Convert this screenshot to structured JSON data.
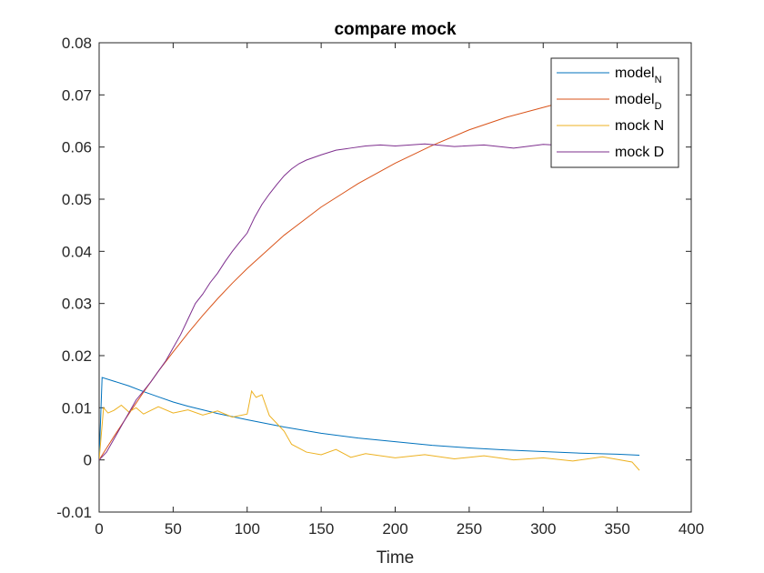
{
  "chart_data": {
    "type": "line",
    "title": "compare mock",
    "xlabel": "Time",
    "ylabel": "",
    "xlim": [
      0,
      400
    ],
    "ylim": [
      -0.01,
      0.08
    ],
    "xticks": [
      "0",
      "50",
      "100",
      "150",
      "200",
      "250",
      "300",
      "350",
      "400"
    ],
    "yticks": [
      "-0.01",
      "0",
      "0.01",
      "0.02",
      "0.03",
      "0.04",
      "0.05",
      "0.06",
      "0.07",
      "0.08"
    ],
    "grid": false,
    "legend_position": "top-right",
    "legend": [
      {
        "text": "model",
        "sub": "N"
      },
      {
        "text": "model",
        "sub": "D"
      },
      {
        "text": "mock N",
        "sub": ""
      },
      {
        "text": "mock D",
        "sub": ""
      }
    ],
    "series": [
      {
        "name": "modelN",
        "color": "#0072BD",
        "x": [
          0,
          2,
          10,
          20,
          30,
          40,
          50,
          60,
          80,
          100,
          125,
          150,
          175,
          200,
          225,
          250,
          275,
          300,
          325,
          350,
          365
        ],
        "y": [
          0,
          0.0158,
          0.0151,
          0.0142,
          0.0131,
          0.0121,
          0.0111,
          0.0103,
          0.0089,
          0.0077,
          0.0063,
          0.0051,
          0.0042,
          0.0035,
          0.0028,
          0.0023,
          0.0019,
          0.0016,
          0.0013,
          0.0011,
          0.0009
        ]
      },
      {
        "name": "modelD",
        "color": "#D95319",
        "x": [
          0,
          10,
          20,
          30,
          40,
          50,
          60,
          70,
          80,
          90,
          100,
          125,
          150,
          175,
          200,
          225,
          250,
          275,
          300,
          325,
          350,
          365
        ],
        "y": [
          0,
          0.0045,
          0.0088,
          0.013,
          0.017,
          0.0207,
          0.0243,
          0.0277,
          0.0309,
          0.0339,
          0.0367,
          0.0431,
          0.0485,
          0.053,
          0.0569,
          0.0603,
          0.0633,
          0.0657,
          0.0676,
          0.0695,
          0.0718,
          0.0735
        ]
      },
      {
        "name": "mock N",
        "color": "#EDB120",
        "x": [
          0,
          3,
          6,
          10,
          15,
          20,
          25,
          30,
          40,
          50,
          60,
          70,
          80,
          90,
          100,
          103,
          106,
          110,
          115,
          120,
          125,
          130,
          140,
          150,
          160,
          170,
          180,
          200,
          220,
          240,
          260,
          280,
          300,
          320,
          340,
          360,
          365
        ],
        "y": [
          0,
          0.01,
          0.009,
          0.0095,
          0.0105,
          0.0092,
          0.01,
          0.0088,
          0.0102,
          0.009,
          0.0096,
          0.0086,
          0.0094,
          0.0082,
          0.0088,
          0.0132,
          0.012,
          0.0125,
          0.0085,
          0.007,
          0.0055,
          0.003,
          0.0015,
          0.001,
          0.002,
          0.0005,
          0.0012,
          0.0004,
          0.001,
          0.0002,
          0.0008,
          0.0,
          0.0004,
          -0.0002,
          0.0006,
          -0.0004,
          -0.002
        ]
      },
      {
        "name": "mock D",
        "color": "#7E2F8E",
        "x": [
          0,
          5,
          10,
          15,
          20,
          25,
          30,
          35,
          40,
          45,
          50,
          55,
          60,
          65,
          70,
          75,
          80,
          85,
          90,
          95,
          100,
          105,
          110,
          115,
          120,
          125,
          130,
          135,
          140,
          150,
          160,
          170,
          180,
          190,
          200,
          220,
          240,
          260,
          280,
          300,
          320,
          340,
          360,
          365
        ],
        "y": [
          0,
          0.0015,
          0.004,
          0.0065,
          0.009,
          0.0115,
          0.0132,
          0.015,
          0.017,
          0.019,
          0.0215,
          0.024,
          0.027,
          0.03,
          0.0318,
          0.034,
          0.0358,
          0.038,
          0.04,
          0.0418,
          0.0435,
          0.0465,
          0.049,
          0.051,
          0.0528,
          0.0545,
          0.0558,
          0.0568,
          0.0575,
          0.0585,
          0.0594,
          0.0598,
          0.0602,
          0.0604,
          0.0602,
          0.0606,
          0.0601,
          0.0604,
          0.0598,
          0.0605,
          0.0602,
          0.0604,
          0.06,
          0.0603
        ]
      }
    ]
  }
}
